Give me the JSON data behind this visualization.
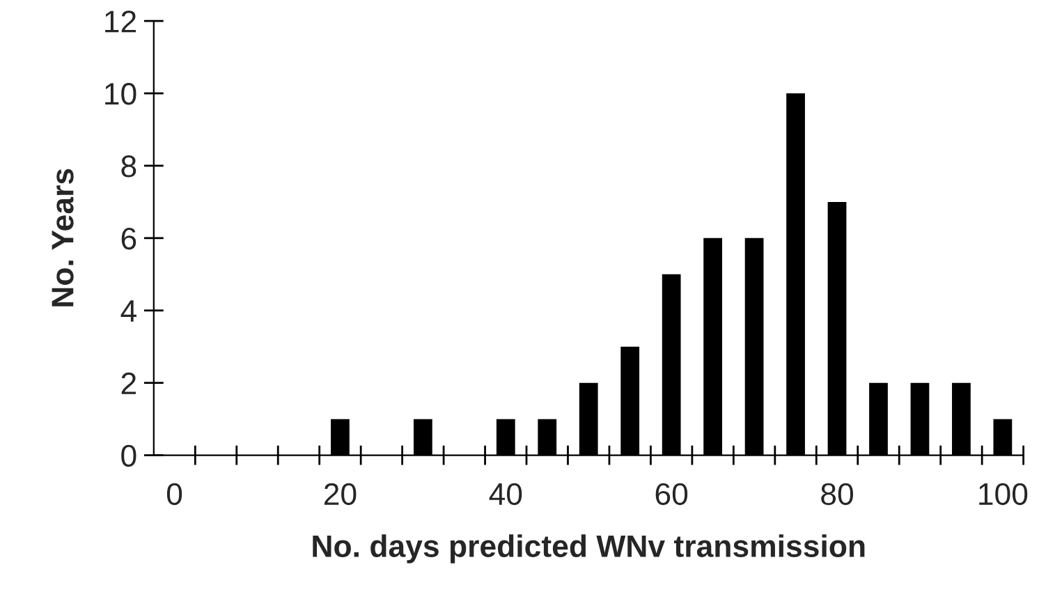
{
  "chart_data": {
    "type": "bar",
    "xlabel": "No. days predicted WNv transmission",
    "ylabel": "No. Years",
    "categories": [
      "0",
      null,
      null,
      null,
      "20",
      null,
      null,
      null,
      "40",
      null,
      null,
      null,
      "60",
      null,
      null,
      null,
      "80",
      null,
      null,
      null,
      "100"
    ],
    "values": [
      0,
      0,
      0,
      0,
      1,
      0,
      1,
      0,
      1,
      1,
      2,
      3,
      5,
      6,
      6,
      10,
      7,
      2,
      2,
      2,
      1
    ],
    "color": "#000000",
    "ylim": [
      0,
      12
    ],
    "yticks": [
      0,
      2,
      4,
      6,
      8,
      10,
      12
    ],
    "grid": false,
    "legend": false
  }
}
